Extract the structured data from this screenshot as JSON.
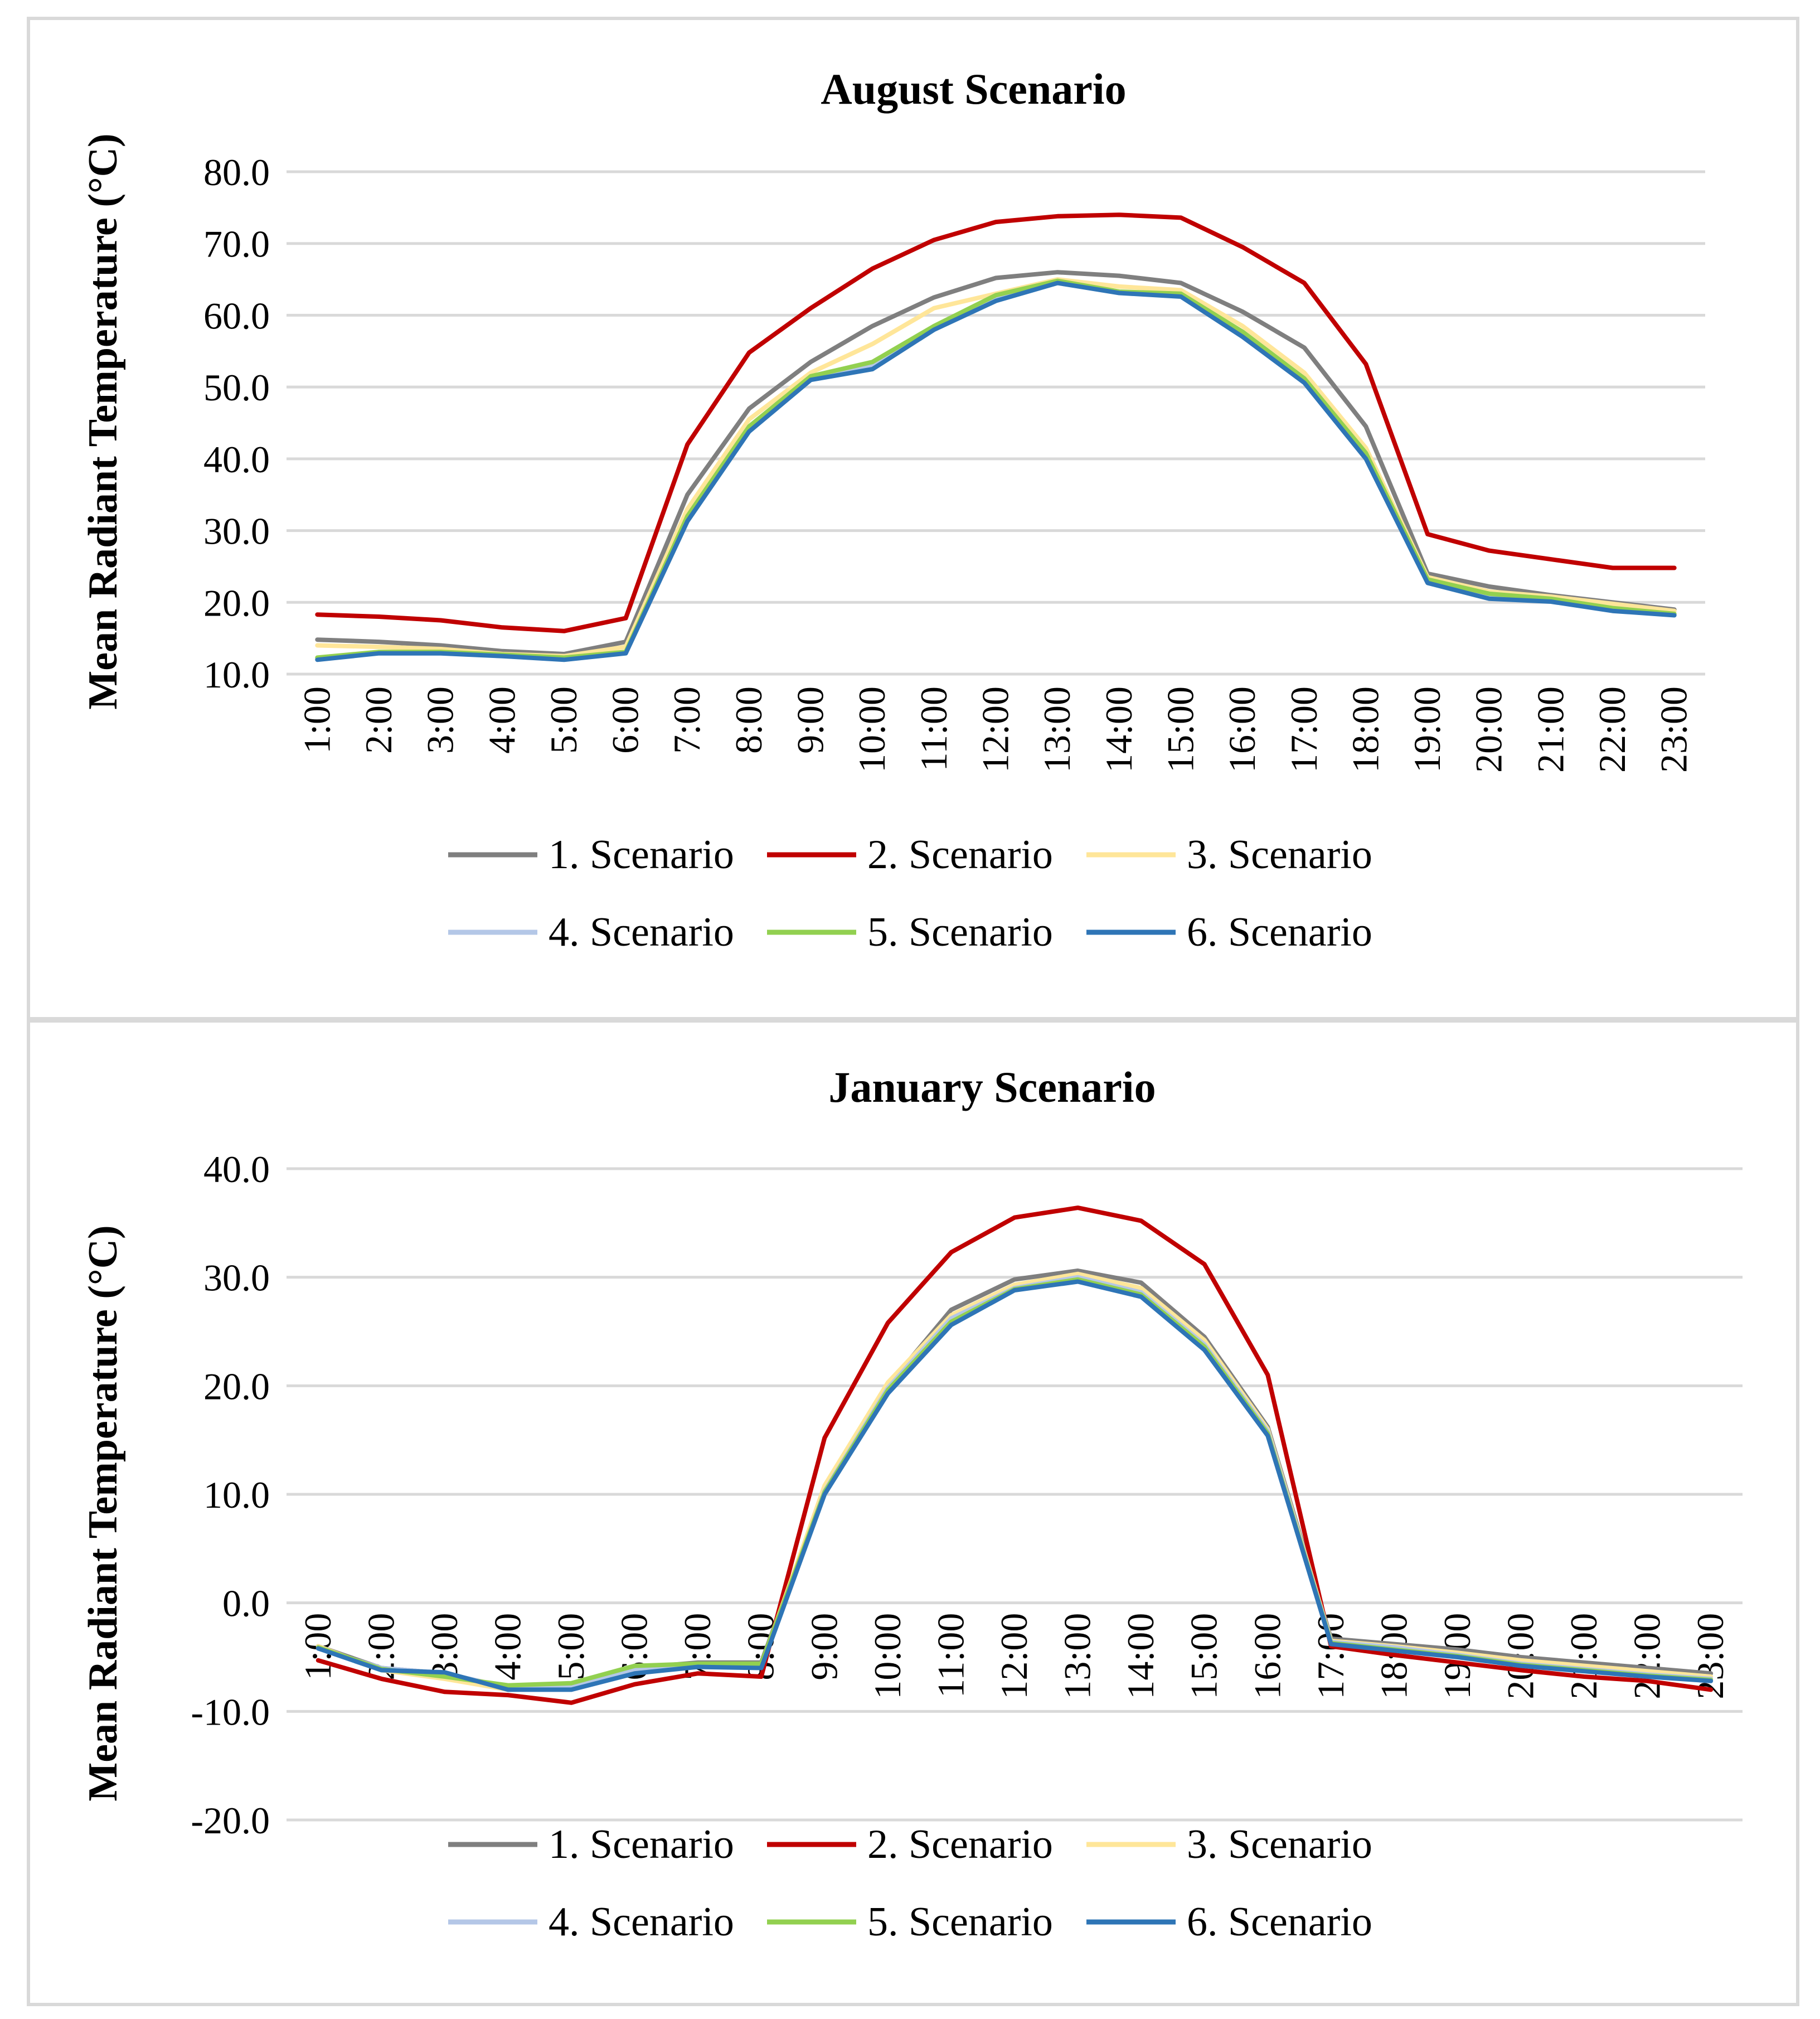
{
  "chart_data": [
    {
      "type": "line",
      "title": "August Scenario",
      "xlabel": "",
      "ylabel": "Mean Radiant Temperature (°C)",
      "ylim": [
        10,
        80
      ],
      "yticks": [
        "10.0",
        "20.0",
        "30.0",
        "40.0",
        "50.0",
        "60.0",
        "70.0",
        "80.0"
      ],
      "ytick_values": [
        10,
        20,
        30,
        40,
        50,
        60,
        70,
        80
      ],
      "categories": [
        "1:00",
        "2:00",
        "3:00",
        "4:00",
        "5:00",
        "6:00",
        "7:00",
        "8:00",
        "9:00",
        "10:00",
        "11:00",
        "12:00",
        "13:00",
        "14:00",
        "15:00",
        "16:00",
        "17:00",
        "18:00",
        "19:00",
        "20:00",
        "21:00",
        "22:00",
        "23:00"
      ],
      "series": [
        {
          "name": "1. Scenario",
          "color": "#7f7f7f",
          "values": [
            14.8,
            14.5,
            14.0,
            13.2,
            12.8,
            14.5,
            35.0,
            47.0,
            53.5,
            58.5,
            62.5,
            65.2,
            66.0,
            65.5,
            64.5,
            60.5,
            55.5,
            44.5,
            24.0,
            22.2,
            21.0,
            20.0,
            19.0
          ]
        },
        {
          "name": "2. Scenario",
          "color": "#c00000",
          "values": [
            18.3,
            18.0,
            17.5,
            16.5,
            16.0,
            17.8,
            42.0,
            54.8,
            61.0,
            66.5,
            70.5,
            73.0,
            73.8,
            74.0,
            73.6,
            69.5,
            64.5,
            53.2,
            29.5,
            27.2,
            26.0,
            24.8,
            24.8
          ]
        },
        {
          "name": "3. Scenario",
          "color": "#ffe699",
          "values": [
            14.0,
            13.8,
            13.5,
            12.8,
            12.5,
            13.8,
            33.0,
            45.5,
            52.0,
            56.0,
            61.0,
            63.0,
            65.0,
            64.0,
            63.5,
            58.5,
            52.0,
            41.5,
            23.5,
            21.5,
            20.8,
            19.8,
            18.8
          ]
        },
        {
          "name": "4. Scenario",
          "color": "#b4c7e7",
          "values": [
            12.2,
            13.0,
            13.0,
            12.6,
            12.2,
            13.0,
            31.5,
            44.0,
            51.5,
            53.0,
            58.5,
            62.5,
            64.5,
            63.2,
            62.8,
            57.5,
            51.0,
            40.5,
            23.0,
            21.0,
            20.3,
            19.0,
            18.3
          ]
        },
        {
          "name": "5. Scenario",
          "color": "#92d050",
          "values": [
            12.3,
            13.1,
            13.1,
            12.7,
            12.3,
            13.1,
            32.0,
            44.5,
            51.5,
            53.5,
            58.5,
            62.8,
            64.8,
            63.3,
            63.0,
            57.7,
            51.2,
            40.8,
            23.2,
            21.2,
            20.5,
            19.2,
            18.4
          ]
        },
        {
          "name": "6. Scenario",
          "color": "#2e75b6",
          "values": [
            12.0,
            12.9,
            12.9,
            12.5,
            12.0,
            12.9,
            31.3,
            43.8,
            51.0,
            52.5,
            58.0,
            62.0,
            64.5,
            63.1,
            62.6,
            57.0,
            50.6,
            40.0,
            22.7,
            20.5,
            20.1,
            18.8,
            18.2
          ]
        }
      ],
      "legend": "bottom"
    },
    {
      "type": "line",
      "title": "January Scenario",
      "xlabel": "",
      "ylabel": "Mean Radiant Temperature (°C)",
      "ylim": [
        -20,
        40
      ],
      "yticks": [
        "-20.0",
        "-10.0",
        "0.0",
        "10.0",
        "20.0",
        "30.0",
        "40.0"
      ],
      "ytick_values": [
        -20,
        -10,
        0,
        10,
        20,
        30,
        40
      ],
      "categories": [
        "1:00",
        "2:00",
        "3:00",
        "4:00",
        "5:00",
        "6:00",
        "7:00",
        "8:00",
        "9:00",
        "10:00",
        "11:00",
        "12:00",
        "13:00",
        "14:00",
        "15:00",
        "16:00",
        "17:00",
        "18:00",
        "19:00",
        "20:00",
        "21:00",
        "22:00",
        "23:00"
      ],
      "series": [
        {
          "name": "1. Scenario",
          "color": "#7f7f7f",
          "values": [
            -4.0,
            -6.0,
            -6.5,
            -7.8,
            -7.5,
            -6.0,
            -5.5,
            -5.5,
            10.5,
            20.0,
            27.0,
            29.8,
            30.6,
            29.5,
            24.5,
            16.2,
            -3.3,
            -3.8,
            -4.3,
            -5.0,
            -5.5,
            -6.0,
            -6.5
          ]
        },
        {
          "name": "2. Scenario",
          "color": "#c00000",
          "values": [
            -5.3,
            -7.0,
            -8.2,
            -8.5,
            -9.2,
            -7.5,
            -6.5,
            -6.8,
            15.2,
            25.8,
            32.3,
            35.5,
            36.4,
            35.2,
            31.2,
            21.0,
            -4.0,
            -4.8,
            -5.5,
            -6.2,
            -6.8,
            -7.2,
            -8.0
          ]
        },
        {
          "name": "3. Scenario",
          "color": "#ffe699",
          "values": [
            -4.0,
            -6.2,
            -7.0,
            -8.0,
            -7.5,
            -6.0,
            -5.7,
            -5.7,
            10.8,
            20.3,
            26.5,
            29.3,
            30.3,
            29.0,
            24.2,
            16.0,
            -3.5,
            -4.0,
            -4.6,
            -5.3,
            -5.8,
            -6.3,
            -6.8
          ]
        },
        {
          "name": "4. Scenario",
          "color": "#b4c7e7",
          "values": [
            -4.2,
            -6.0,
            -6.5,
            -7.8,
            -7.8,
            -6.2,
            -5.8,
            -5.9,
            10.3,
            19.8,
            26.2,
            29.0,
            30.0,
            28.6,
            23.8,
            15.8,
            -3.6,
            -4.1,
            -4.8,
            -5.6,
            -6.1,
            -6.6,
            -7.0
          ]
        },
        {
          "name": "5. Scenario",
          "color": "#92d050",
          "values": [
            -4.1,
            -6.1,
            -6.8,
            -7.6,
            -7.4,
            -5.8,
            -5.6,
            -5.6,
            10.2,
            19.6,
            25.9,
            28.9,
            29.8,
            28.4,
            23.6,
            15.6,
            -3.7,
            -4.3,
            -4.9,
            -5.7,
            -6.2,
            -6.7,
            -7.1
          ]
        },
        {
          "name": "6. Scenario",
          "color": "#2e75b6",
          "values": [
            -4.2,
            -6.2,
            -6.4,
            -8.0,
            -8.0,
            -6.5,
            -5.9,
            -6.0,
            10.0,
            19.3,
            25.6,
            28.8,
            29.6,
            28.2,
            23.3,
            15.4,
            -3.8,
            -4.4,
            -5.0,
            -5.8,
            -6.3,
            -6.8,
            -7.2
          ]
        }
      ],
      "legend": "bottom"
    }
  ]
}
